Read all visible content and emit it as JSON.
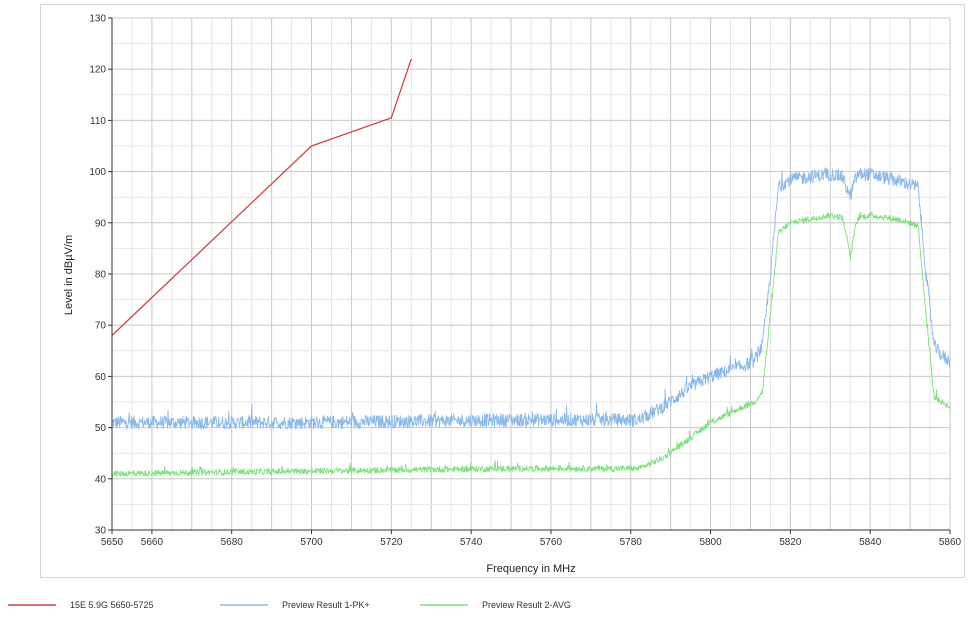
{
  "chart_data": {
    "type": "line",
    "xlabel": "Frequency in MHz",
    "ylabel": "Level in dBµV/m",
    "xlim": [
      5650,
      5860
    ],
    "ylim": [
      30,
      130
    ],
    "x_ticks": [
      5650,
      5660,
      5680,
      5700,
      5720,
      5740,
      5760,
      5780,
      5800,
      5820,
      5840,
      5860
    ],
    "y_ticks": [
      30,
      40,
      50,
      60,
      70,
      80,
      90,
      100,
      110,
      120,
      130
    ],
    "grid": true,
    "legend_position": "bottom-left",
    "series": [
      {
        "name": "15E 5.9G 5650-5725",
        "color": "#cc4444",
        "x": [
          5650,
          5700,
          5720,
          5725
        ],
        "y": [
          68,
          105,
          110.5,
          122
        ]
      },
      {
        "name": "Preview Result 1-PK+",
        "color": "#8ab8ea",
        "noise": 1.3,
        "x": [
          5650,
          5700,
          5750,
          5770,
          5782,
          5788,
          5795,
          5800,
          5808,
          5811,
          5813,
          5815,
          5817,
          5820,
          5830,
          5833,
          5834,
          5835,
          5836,
          5837,
          5840,
          5848,
          5852,
          5854,
          5856,
          5858,
          5860
        ],
        "y": [
          51,
          51,
          51.5,
          51.5,
          51.5,
          54,
          58,
          60,
          62,
          63,
          66,
          80,
          97,
          98.5,
          99.5,
          99,
          97,
          95,
          98,
          99.5,
          99.5,
          98,
          97,
          80,
          66,
          64,
          63
        ]
      },
      {
        "name": "Preview Result 2-AVG",
        "color": "#7ee07e",
        "noise": 0.6,
        "x": [
          5650,
          5700,
          5750,
          5775,
          5782,
          5788,
          5795,
          5800,
          5808,
          5811,
          5813,
          5815,
          5817,
          5820,
          5830,
          5833,
          5834,
          5835,
          5836,
          5837,
          5840,
          5848,
          5852,
          5854,
          5856,
          5858,
          5860
        ],
        "y": [
          41,
          41.5,
          42,
          42,
          42,
          44,
          48,
          51,
          54,
          55,
          57,
          72,
          88,
          90,
          91.5,
          91,
          88,
          83,
          88,
          91,
          91.5,
          90.5,
          89.5,
          72,
          56,
          55,
          54
        ]
      }
    ]
  }
}
